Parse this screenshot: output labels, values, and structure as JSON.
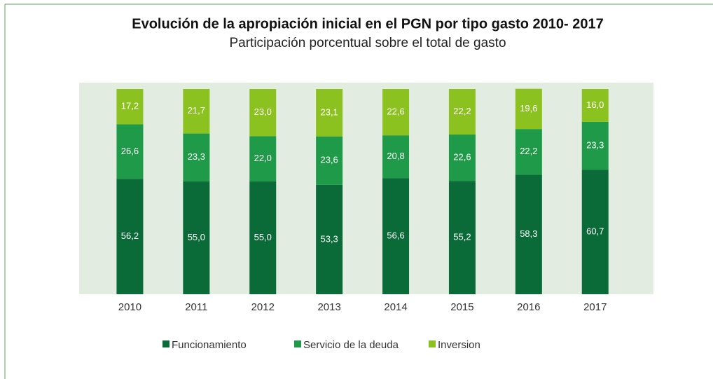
{
  "chart_data": {
    "type": "stacked_bar",
    "title": "Evolución de la apropiación inicial en el PGN por tipo gasto 2010- 2017",
    "subtitle": "Participación porcentual sobre el total de gasto",
    "categories": [
      "2010",
      "2011",
      "2012",
      "2013",
      "2014",
      "2015",
      "2016",
      "2017"
    ],
    "ylim": [
      0,
      100
    ],
    "series": [
      {
        "name": "Funcionamiento",
        "color": "#0b6b38",
        "values": [
          56.2,
          55.0,
          55.0,
          53.3,
          56.6,
          55.2,
          58.3,
          60.7
        ],
        "value_labels": [
          "56,2",
          "55,0",
          "55,0",
          "53,3",
          "56,6",
          "55,2",
          "58,3",
          "60,7"
        ]
      },
      {
        "name": "Servicio de la deuda",
        "color": "#1f9a48",
        "values": [
          26.6,
          23.3,
          22.0,
          23.6,
          20.8,
          22.6,
          22.2,
          23.3
        ],
        "value_labels": [
          "26,6",
          "23,3",
          "22,0",
          "23,6",
          "20,8",
          "22,6",
          "22,2",
          "23,3"
        ]
      },
      {
        "name": "Inversion",
        "color": "#8cc21f",
        "values": [
          17.2,
          21.7,
          23.0,
          23.1,
          22.6,
          22.2,
          19.6,
          16.0
        ],
        "value_labels": [
          "17,2",
          "21,7",
          "23,0",
          "23,1",
          "22,6",
          "22,2",
          "19,6",
          "16,0"
        ]
      }
    ]
  }
}
